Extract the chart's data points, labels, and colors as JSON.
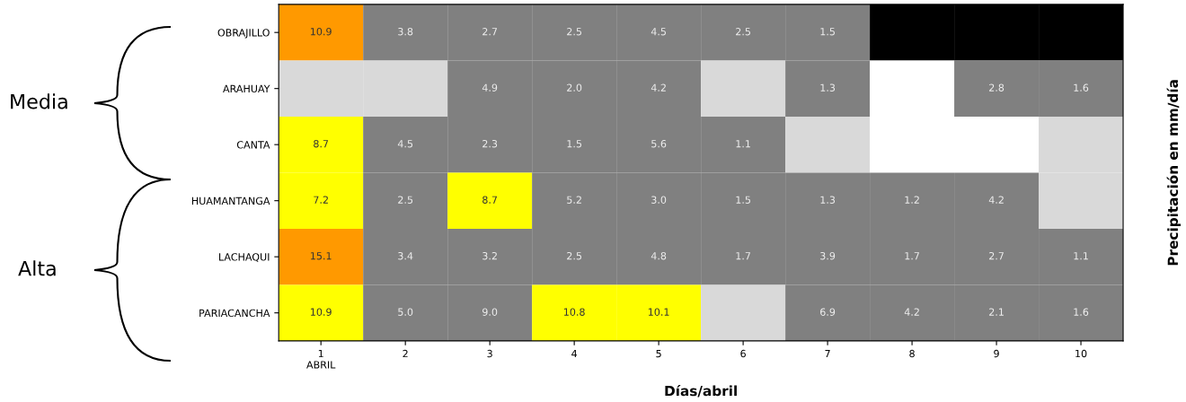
{
  "chart_data": {
    "type": "heatmap",
    "categories": [
      "1\nABRIL",
      "2",
      "3",
      "4",
      "5",
      "6",
      "7",
      "8",
      "9",
      "10"
    ],
    "y_categories": [
      "OBRAJILLO",
      "ARAHUAY",
      "CANTA",
      "HUAMANTANGA",
      "LACHAQUI",
      "PARIACANCHA"
    ],
    "cells": [
      [
        10.9,
        3.8,
        2.7,
        2.5,
        4.5,
        2.5,
        1.5,
        null,
        null,
        null
      ],
      [
        null,
        null,
        4.9,
        2.0,
        4.2,
        null,
        1.3,
        null,
        2.8,
        1.6
      ],
      [
        8.7,
        4.5,
        2.3,
        1.5,
        5.6,
        1.1,
        null,
        null,
        null,
        null
      ],
      [
        7.2,
        2.5,
        8.7,
        5.2,
        3.0,
        1.5,
        1.3,
        1.2,
        4.2,
        null
      ],
      [
        15.1,
        3.4,
        3.2,
        2.5,
        4.8,
        1.7,
        3.9,
        1.7,
        2.7,
        1.1
      ],
      [
        10.9,
        5.0,
        9.0,
        10.8,
        10.1,
        null,
        6.9,
        4.2,
        2.1,
        1.6
      ]
    ],
    "colors": [
      [
        "#ff9900",
        "#808080",
        "#808080",
        "#808080",
        "#808080",
        "#808080",
        "#808080",
        "#000000",
        "#000000",
        "#000000"
      ],
      [
        "#d9d9d9",
        "#d9d9d9",
        "#808080",
        "#808080",
        "#808080",
        "#d9d9d9",
        "#808080",
        "#ffffff",
        "#808080",
        "#808080"
      ],
      [
        "#ffff00",
        "#808080",
        "#808080",
        "#808080",
        "#808080",
        "#808080",
        "#d9d9d9",
        "#ffffff",
        "#ffffff",
        "#d9d9d9"
      ],
      [
        "#ffff00",
        "#808080",
        "#ffff00",
        "#808080",
        "#808080",
        "#808080",
        "#808080",
        "#808080",
        "#808080",
        "#d9d9d9"
      ],
      [
        "#ff9900",
        "#808080",
        "#808080",
        "#808080",
        "#808080",
        "#808080",
        "#808080",
        "#808080",
        "#808080",
        "#808080"
      ],
      [
        "#ffff00",
        "#808080",
        "#808080",
        "#ffff00",
        "#ffff00",
        "#d9d9d9",
        "#808080",
        "#808080",
        "#808080",
        "#808080"
      ]
    ],
    "data_labels": true,
    "cell_labels": [
      [
        "10.9",
        "3.8",
        "2.7",
        "2.5",
        "4.5",
        "2.5",
        "1.5",
        null,
        null,
        null
      ],
      [
        null,
        null,
        "4.9",
        "2.0",
        "4.2",
        null,
        "1.3",
        null,
        "2.8",
        "1.6"
      ],
      [
        "8.7",
        "4.5",
        "2.3",
        "1.5",
        "5.6",
        "1.1",
        null,
        null,
        null,
        null
      ],
      [
        "7.2",
        "2.5",
        "8.7",
        "5.2",
        "3.0",
        "1.5",
        "1.3",
        "1.2",
        "4.2",
        null
      ],
      [
        "15.1",
        "3.4",
        "3.2",
        "2.5",
        "4.8",
        "1.7",
        "3.9",
        "1.7",
        "2.7",
        "1.1"
      ],
      [
        "10.9",
        "5.0",
        "9.0",
        "10.8",
        "10.1",
        null,
        "6.9",
        "4.2",
        "2.1",
        "1.6"
      ]
    ],
    "xlabel": "Días/abril",
    "ylabel": "Precipitación en mm/día",
    "annotations": [
      "Media",
      "Alta"
    ]
  }
}
